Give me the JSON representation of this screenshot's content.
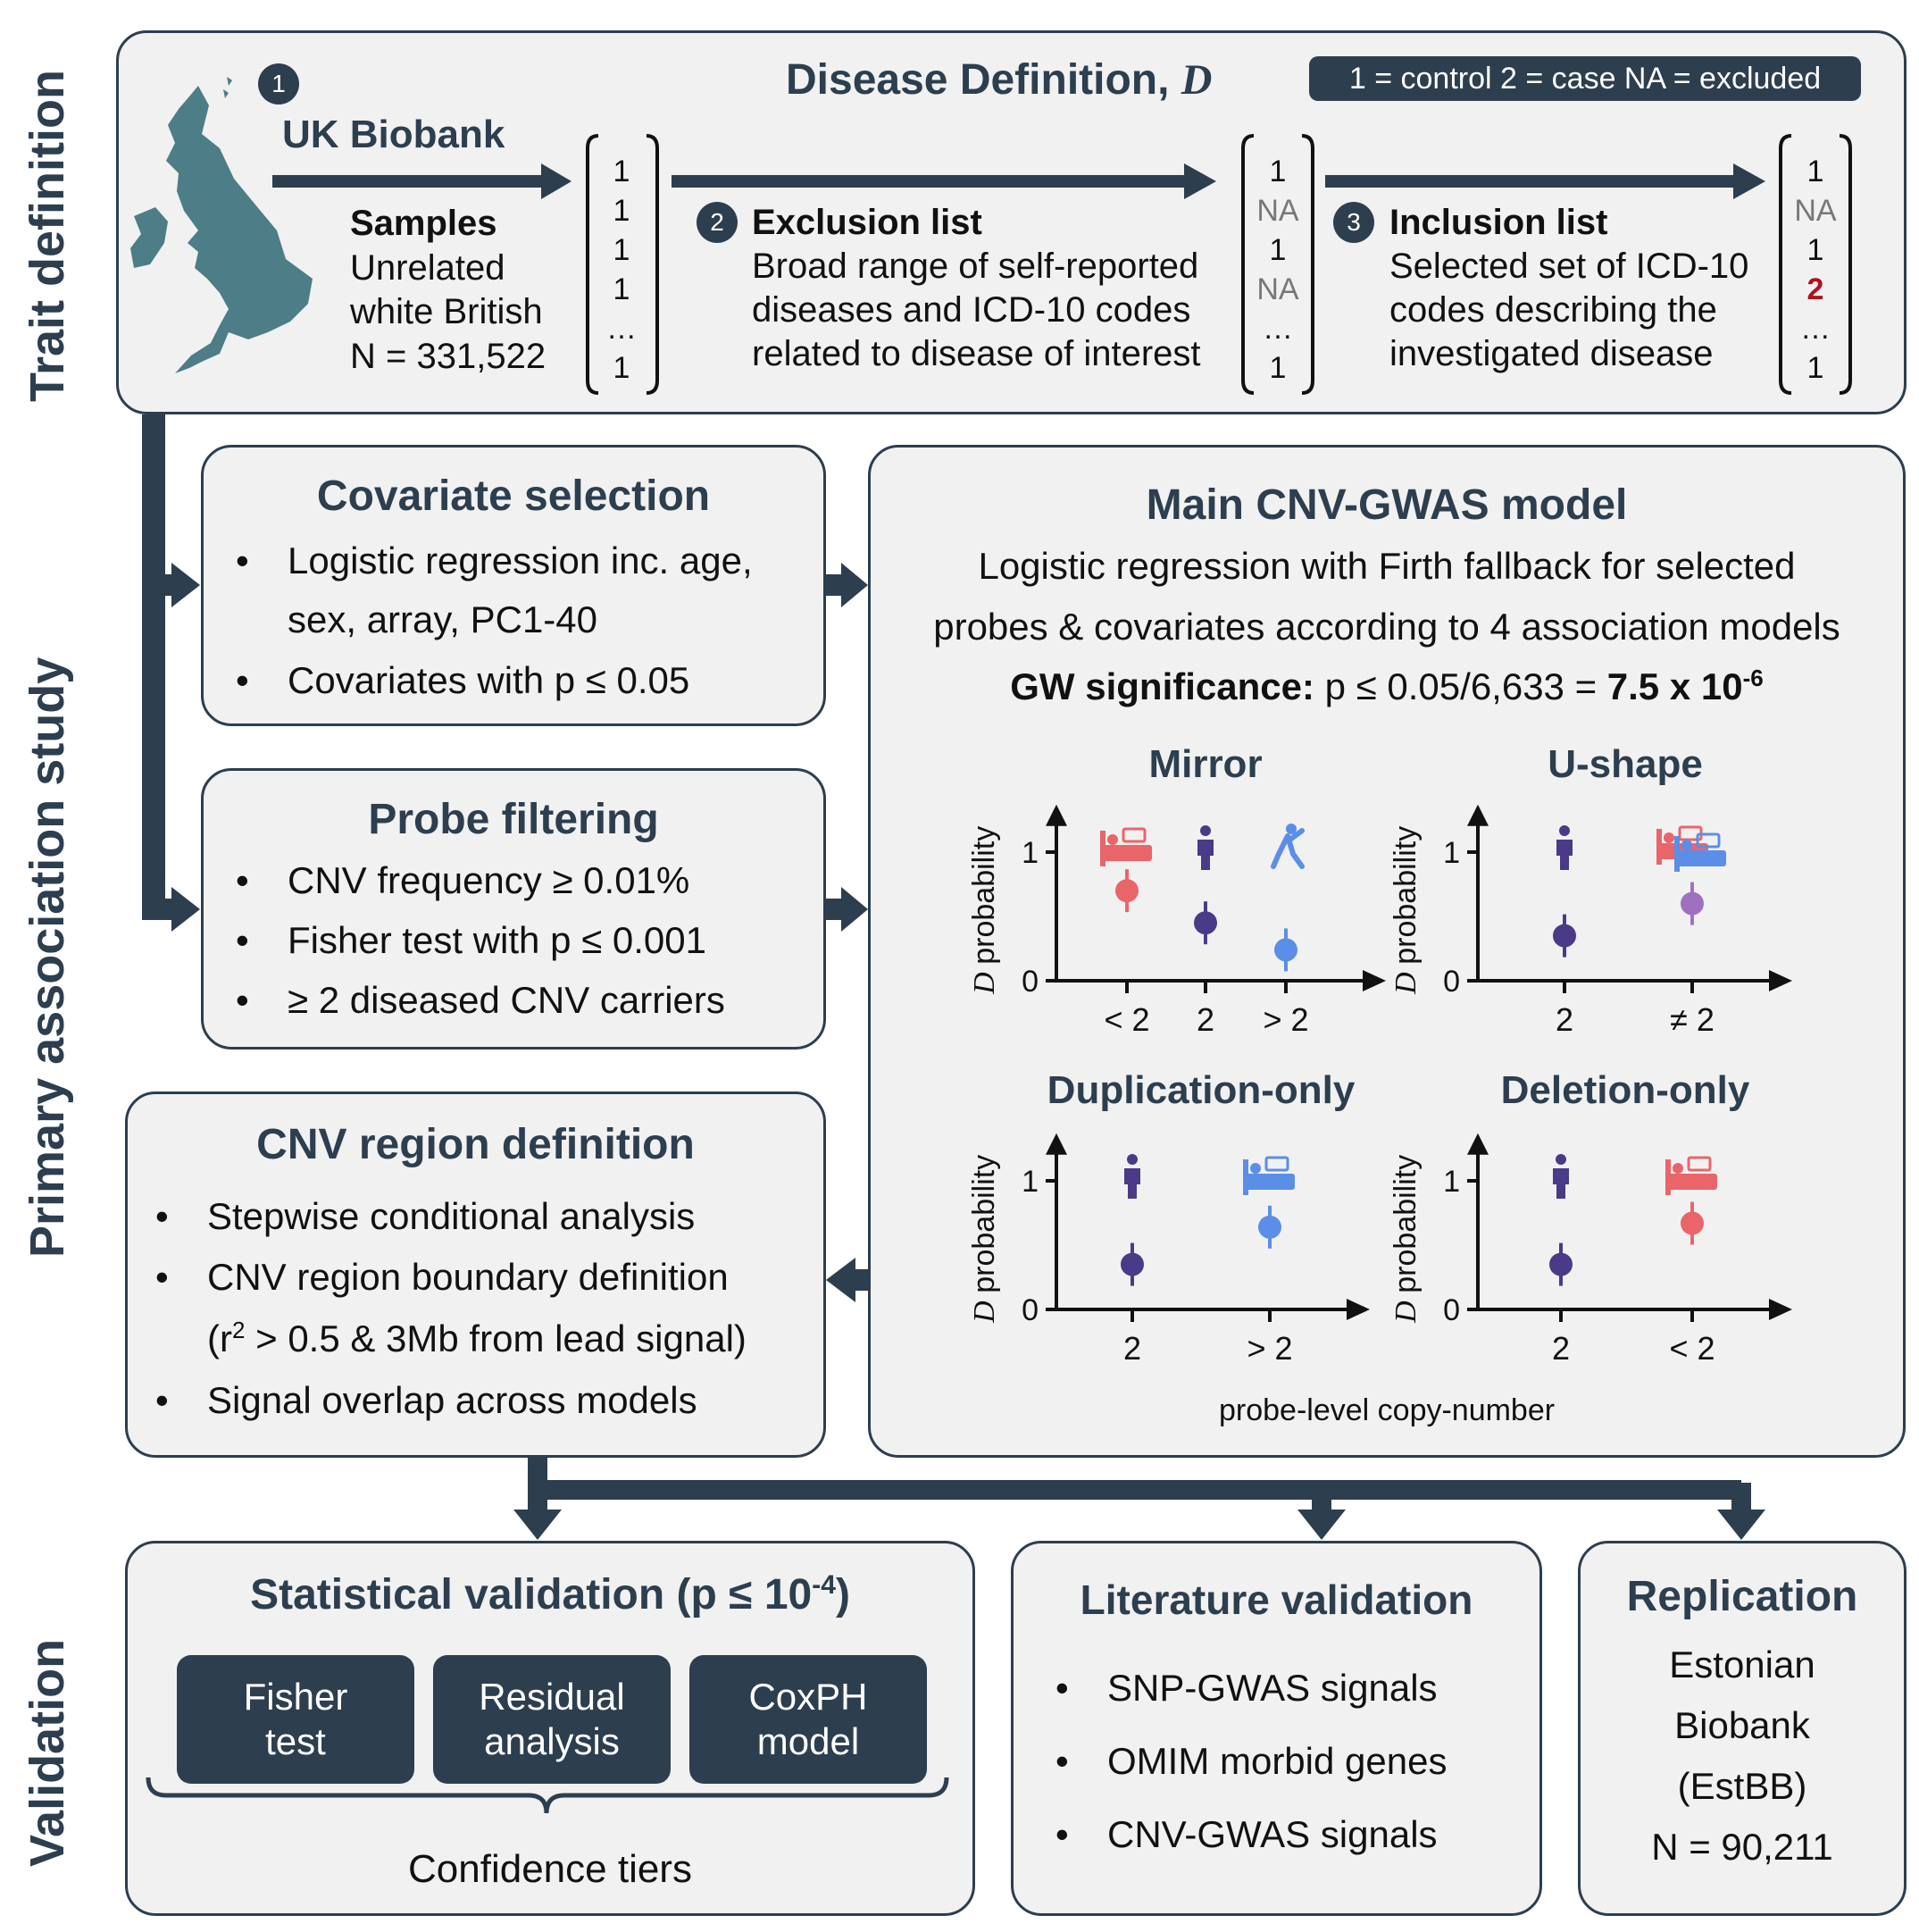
{
  "sections": {
    "trait": "Trait definition",
    "primary": "Primary association study",
    "validation": "Validation"
  },
  "trait": {
    "step1": "1",
    "step2": "2",
    "step3": "3",
    "title": "Disease Definition, ",
    "title_var": "D",
    "legend": "1 = control  2 = case  NA = excluded",
    "ukb": "UK Biobank",
    "samples_title": "Samples",
    "samples_lines": [
      "Unrelated",
      "white British",
      "N = 331,522"
    ],
    "vector1": [
      "1",
      "1",
      "1",
      "1",
      "…",
      "1"
    ],
    "exclusion_title": "Exclusion list",
    "exclusion_lines": [
      "Broad range of self-reported",
      "diseases and ICD-10 codes",
      "related to disease of interest"
    ],
    "vector2": [
      "1",
      "NA",
      "1",
      "NA",
      "…",
      "1"
    ],
    "inclusion_title": "Inclusion list",
    "inclusion_lines": [
      "Selected set of ICD-10",
      "codes describing the",
      "investigated disease"
    ],
    "vector3": [
      "1",
      "NA",
      "1",
      "2",
      "…",
      "1"
    ]
  },
  "covariate": {
    "title": "Covariate selection",
    "items": [
      "Logistic regression inc. age,",
      "sex, array, PC1-40",
      "Covariates with p ≤ 0.05"
    ]
  },
  "probe": {
    "title": "Probe filtering",
    "items": [
      "CNV frequency ≥ 0.01%",
      "Fisher test with p ≤ 0.001",
      "≥ 2 diseased CNV carriers"
    ]
  },
  "region": {
    "title": "CNV region definition",
    "items": [
      "Stepwise conditional analysis",
      "CNV region boundary definition",
      "Signal overlap across models"
    ],
    "item2b_pre": "(r",
    "item2b_sup": "2",
    "item2b_post": " > 0.5 & 3Mb from lead signal)"
  },
  "main": {
    "title": "Main CNV-GWAS model",
    "line1": "Logistic regression with Firth fallback for selected",
    "line2": "probes & covariates according to 4 association models",
    "gw_label": "GW significance:",
    "gw_expr": " p ≤ 0.05/6,633 = ",
    "gw_value": "7.5 x 10",
    "gw_exp": "-6",
    "xlabel": "probe-level copy-number"
  },
  "chart_data": [
    {
      "type": "scatter",
      "title": "Mirror",
      "ylabel_var": "D",
      "ylabel": "probability",
      "categories": [
        "< 2",
        "2",
        "> 2"
      ],
      "values": [
        0.7,
        0.45,
        0.24
      ],
      "colors": [
        "#e9656a",
        "#4a3a88",
        "#5b8ee6"
      ],
      "yticks": [
        "0",
        "1"
      ],
      "ylim": [
        0,
        1.3
      ]
    },
    {
      "type": "scatter",
      "title": "U-shape",
      "ylabel_var": "D",
      "ylabel": "probability",
      "categories": [
        "2",
        "≠ 2"
      ],
      "values": [
        0.35,
        0.6
      ],
      "colors": [
        "#4a3a88",
        "#a070c0"
      ],
      "yticks": [
        "0",
        "1"
      ],
      "ylim": [
        0,
        1.3
      ]
    },
    {
      "type": "scatter",
      "title": "Duplication-only",
      "ylabel_var": "D",
      "ylabel": "probability",
      "categories": [
        "2",
        "> 2"
      ],
      "values": [
        0.35,
        0.64
      ],
      "colors": [
        "#4a3a88",
        "#5b8ee6"
      ],
      "yticks": [
        "0",
        "1"
      ],
      "ylim": [
        0,
        1.3
      ]
    },
    {
      "type": "scatter",
      "title": "Deletion-only",
      "ylabel_var": "D",
      "ylabel": "probability",
      "categories": [
        "2",
        "< 2"
      ],
      "values": [
        0.35,
        0.67
      ],
      "colors": [
        "#4a3a88",
        "#e9656a"
      ],
      "yticks": [
        "0",
        "1"
      ],
      "ylim": [
        0,
        1.3
      ]
    }
  ],
  "statval": {
    "title": "Statistical validation (p ≤ 10",
    "title_sup": "-4",
    "title_end": ")",
    "buttons": [
      [
        "Fisher",
        "test"
      ],
      [
        "Residual",
        "analysis"
      ],
      [
        "CoxPH",
        "model"
      ]
    ],
    "footer": "Confidence tiers"
  },
  "literature": {
    "title": "Literature validation",
    "items": [
      "SNP-GWAS signals",
      "OMIM morbid genes",
      "CNV-GWAS signals"
    ]
  },
  "replication": {
    "title": "Replication",
    "lines": [
      "Estonian",
      "Biobank",
      "(EstBB)",
      "N = 90,211"
    ]
  }
}
